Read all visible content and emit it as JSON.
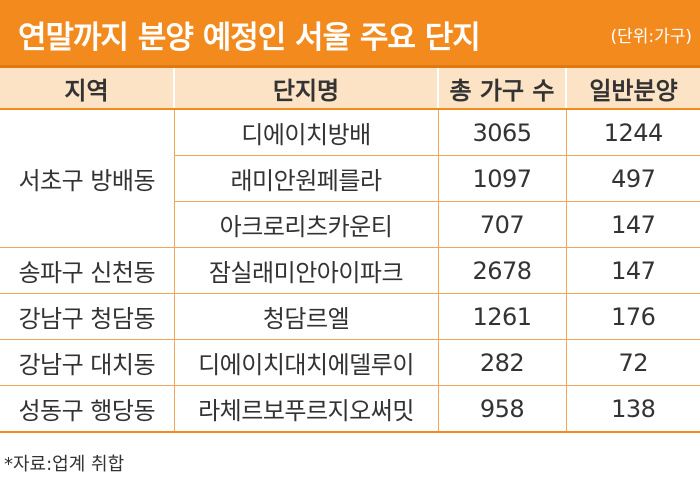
{
  "title": "연말까지 분양 예정인 서울 주요 단지",
  "unit": "(단위:가구)",
  "headers": [
    "지역",
    "단지명",
    "총 가구 수",
    "일반분양"
  ],
  "groups": [
    {
      "region": "서초구 방배동",
      "rows": [
        {
          "name": "디에이치방배",
          "total": "3065",
          "general": "1244"
        },
        {
          "name": "래미안원페를라",
          "total": "1097",
          "general": "497"
        },
        {
          "name": "아크로리츠카운티",
          "total": "707",
          "general": "147"
        }
      ]
    },
    {
      "region": "송파구 신천동",
      "rows": [
        {
          "name": "잠실래미안아이파크",
          "total": "2678",
          "general": "147"
        }
      ]
    },
    {
      "region": "강남구 청담동",
      "rows": [
        {
          "name": "청담르엘",
          "total": "1261",
          "general": "176"
        }
      ]
    },
    {
      "region": "강남구 대치동",
      "rows": [
        {
          "name": "디에이치대치에델루이",
          "total": "282",
          "general": "72"
        }
      ]
    },
    {
      "region": "성동구 행당동",
      "rows": [
        {
          "name": "라체르보푸르지오써밋",
          "total": "958",
          "general": "138"
        }
      ]
    }
  ],
  "footnote": "*자료:업계 취합"
}
